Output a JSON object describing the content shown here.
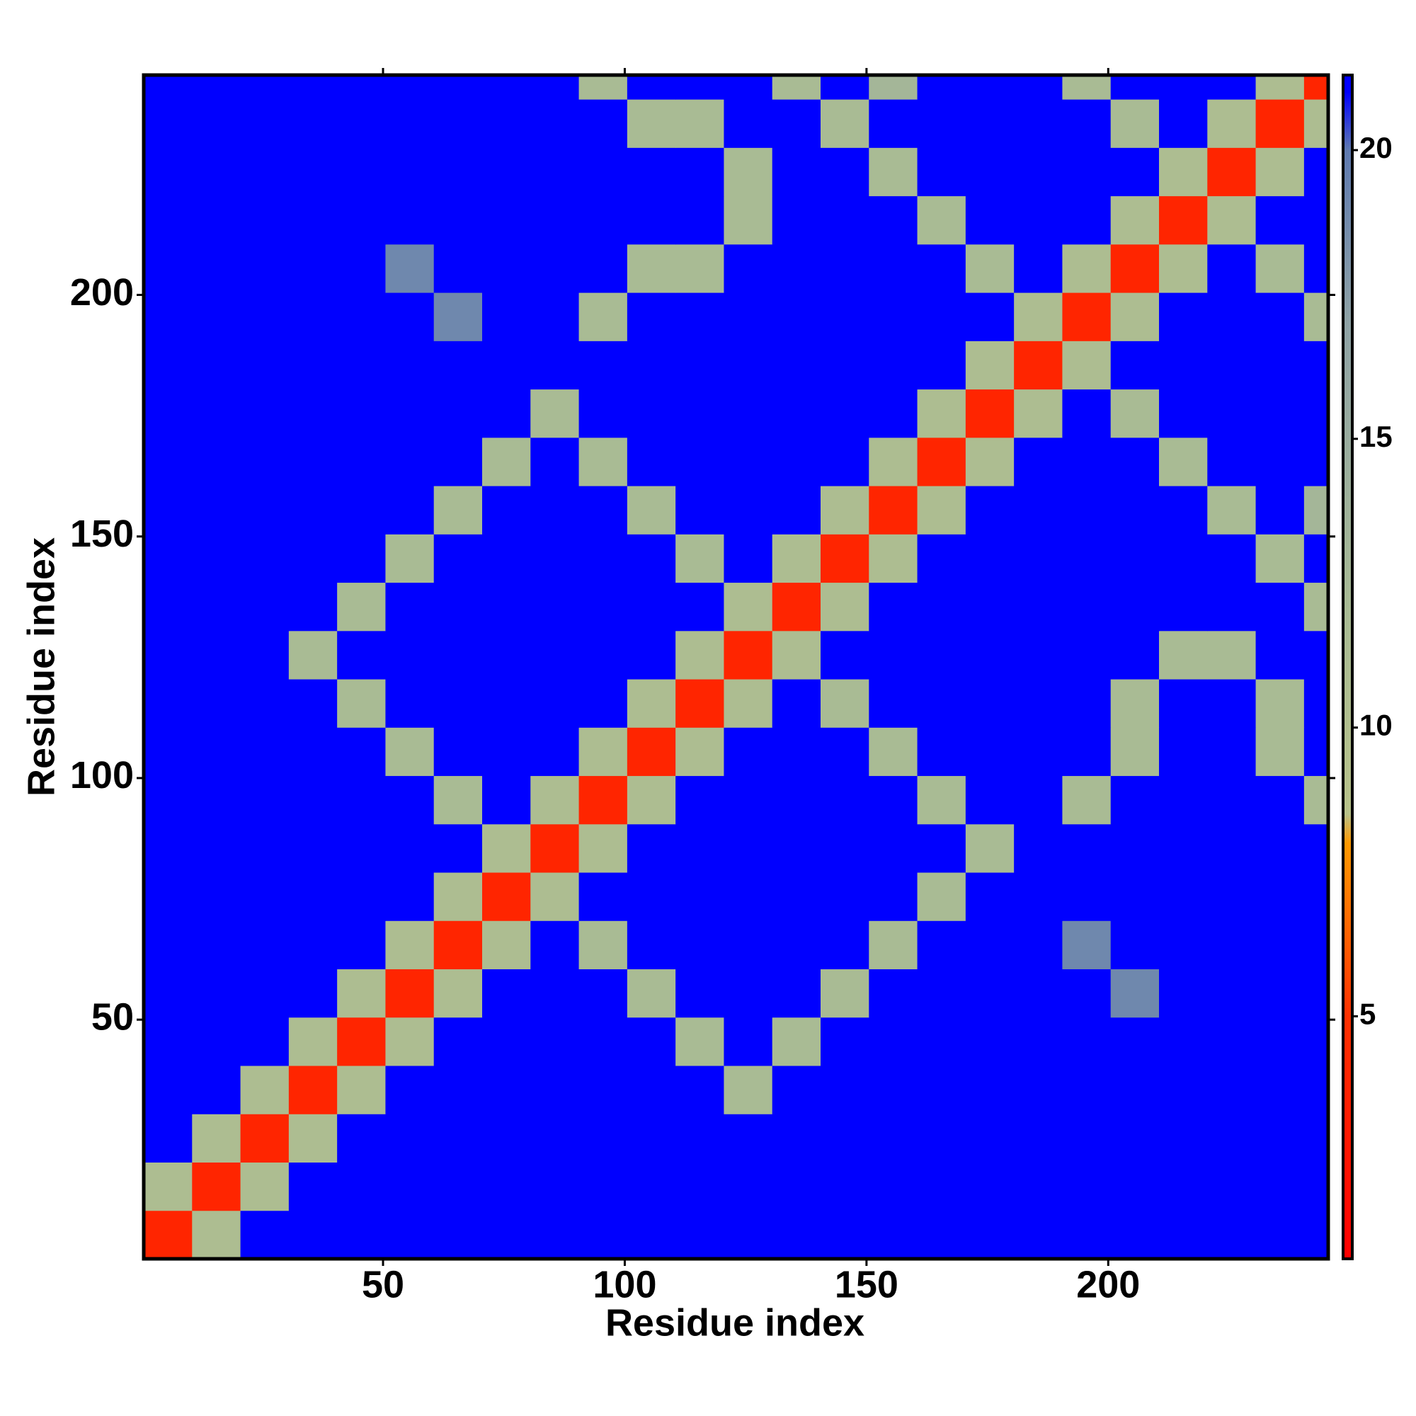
{
  "chart_data": {
    "type": "heatmap",
    "xlabel": "Residue index",
    "ylabel": "Residue index",
    "xlim": [
      0.5,
      245.5
    ],
    "ylim": [
      0.5,
      245.5
    ],
    "xticks": [
      50,
      100,
      150,
      200
    ],
    "yticks": [
      50,
      100,
      150,
      200
    ],
    "xbins": [
      0.5,
      10.5,
      20.5,
      30.5,
      40.5,
      50.5,
      60.5,
      70.5,
      80.5,
      90.5,
      100.5,
      110.5,
      120.5,
      130.5,
      140.5,
      150.5,
      160.5,
      170.5,
      180.5,
      190.5,
      200.5,
      210.5,
      220.5,
      230.5,
      240.5,
      245.5
    ],
    "ybins": [
      0.5,
      10.5,
      20.5,
      30.5,
      40.5,
      50.5,
      60.5,
      70.5,
      80.5,
      90.5,
      100.5,
      110.5,
      120.5,
      130.5,
      140.5,
      150.5,
      160.5,
      170.5,
      180.5,
      190.5,
      200.5,
      210.5,
      220.5,
      230.5,
      240.5,
      245.5
    ],
    "clim": [
      0.8,
      21.3
    ],
    "cticks": [
      5,
      10,
      15,
      20
    ],
    "colorscale": [
      [
        0.8,
        "#ff0000"
      ],
      [
        5,
        "#ff3000"
      ],
      [
        8,
        "#ff9900"
      ],
      [
        8.5,
        "#b8c28a"
      ],
      [
        12,
        "#a9bb94"
      ],
      [
        17,
        "#8fa3a6"
      ],
      [
        20,
        "#5f7ab0"
      ],
      [
        21,
        "#0000ff"
      ]
    ],
    "z": [
      [
        4,
        11,
        21,
        21,
        21,
        21,
        21,
        21,
        21,
        21,
        21,
        21,
        21,
        21,
        21,
        21,
        21,
        21,
        21,
        21,
        21,
        21,
        21,
        21,
        21
      ],
      [
        11,
        4,
        11,
        21,
        21,
        21,
        21,
        21,
        21,
        21,
        21,
        21,
        21,
        21,
        21,
        21,
        21,
        21,
        21,
        21,
        21,
        21,
        21,
        21,
        21
      ],
      [
        21,
        11,
        4,
        11,
        21,
        21,
        21,
        21,
        21,
        21,
        21,
        21,
        21,
        21,
        21,
        21,
        21,
        21,
        21,
        21,
        21,
        21,
        21,
        21,
        21
      ],
      [
        21,
        21,
        11,
        4,
        11,
        21,
        21,
        21,
        21,
        21,
        21,
        21,
        12,
        21,
        21,
        21,
        21,
        21,
        21,
        21,
        21,
        21,
        21,
        21,
        21
      ],
      [
        21,
        21,
        21,
        11,
        4,
        11,
        21,
        21,
        21,
        21,
        21,
        12,
        21,
        12,
        21,
        21,
        21,
        21,
        21,
        21,
        21,
        21,
        21,
        21,
        21
      ],
      [
        21,
        21,
        21,
        21,
        11,
        4,
        11,
        21,
        21,
        21,
        12,
        21,
        21,
        21,
        12,
        21,
        21,
        21,
        21,
        21,
        19,
        21,
        21,
        21,
        21
      ],
      [
        21,
        21,
        21,
        21,
        21,
        11,
        4,
        11,
        21,
        12,
        21,
        21,
        21,
        21,
        21,
        12,
        21,
        21,
        21,
        19,
        21,
        21,
        21,
        21,
        21
      ],
      [
        21,
        21,
        21,
        21,
        21,
        21,
        11,
        4,
        11,
        21,
        21,
        21,
        21,
        21,
        21,
        21,
        12,
        21,
        21,
        21,
        21,
        21,
        21,
        21,
        21
      ],
      [
        21,
        21,
        21,
        21,
        21,
        21,
        21,
        11,
        4,
        11,
        21,
        21,
        21,
        21,
        21,
        21,
        21,
        12,
        21,
        21,
        21,
        21,
        21,
        21,
        21
      ],
      [
        21,
        21,
        21,
        21,
        21,
        21,
        12,
        21,
        11,
        4,
        11,
        21,
        21,
        21,
        21,
        21,
        12,
        21,
        21,
        12,
        21,
        21,
        21,
        21,
        12
      ],
      [
        21,
        21,
        21,
        21,
        21,
        12,
        21,
        21,
        21,
        11,
        4,
        11,
        21,
        21,
        21,
        12,
        21,
        21,
        21,
        21,
        12,
        21,
        21,
        12,
        21
      ],
      [
        21,
        21,
        21,
        21,
        12,
        21,
        21,
        21,
        21,
        21,
        11,
        4,
        11,
        21,
        12,
        21,
        21,
        21,
        21,
        21,
        12,
        21,
        21,
        12,
        21
      ],
      [
        21,
        21,
        21,
        12,
        21,
        21,
        21,
        21,
        21,
        21,
        21,
        11,
        4,
        11,
        21,
        21,
        21,
        21,
        21,
        21,
        21,
        12,
        12,
        21,
        21
      ],
      [
        21,
        21,
        21,
        21,
        12,
        21,
        21,
        21,
        21,
        21,
        21,
        21,
        11,
        4,
        11,
        21,
        21,
        21,
        21,
        21,
        21,
        21,
        21,
        21,
        12
      ],
      [
        21,
        21,
        21,
        21,
        21,
        12,
        21,
        21,
        21,
        21,
        21,
        12,
        21,
        11,
        4,
        11,
        21,
        21,
        21,
        21,
        21,
        21,
        21,
        12,
        21
      ],
      [
        21,
        21,
        21,
        21,
        21,
        21,
        12,
        21,
        21,
        21,
        12,
        21,
        21,
        21,
        11,
        4,
        11,
        21,
        21,
        21,
        21,
        21,
        12,
        21,
        13
      ],
      [
        21,
        21,
        21,
        21,
        21,
        21,
        21,
        12,
        21,
        12,
        21,
        21,
        21,
        21,
        21,
        11,
        4,
        11,
        21,
        21,
        21,
        12,
        21,
        21,
        21
      ],
      [
        21,
        21,
        21,
        21,
        21,
        21,
        21,
        21,
        12,
        21,
        21,
        21,
        21,
        21,
        21,
        21,
        11,
        4,
        11,
        21,
        12,
        21,
        21,
        21,
        21
      ],
      [
        21,
        21,
        21,
        21,
        21,
        21,
        21,
        21,
        21,
        21,
        21,
        21,
        21,
        21,
        21,
        21,
        21,
        11,
        4,
        11,
        21,
        21,
        21,
        21,
        21
      ],
      [
        21,
        21,
        21,
        21,
        21,
        21,
        19,
        21,
        21,
        12,
        21,
        21,
        21,
        21,
        21,
        21,
        21,
        21,
        11,
        4,
        11,
        21,
        21,
        21,
        12
      ],
      [
        21,
        21,
        21,
        21,
        21,
        19,
        21,
        21,
        21,
        21,
        12,
        12,
        21,
        21,
        21,
        21,
        21,
        12,
        21,
        11,
        4,
        11,
        21,
        12,
        21
      ],
      [
        21,
        21,
        21,
        21,
        21,
        21,
        21,
        21,
        21,
        21,
        21,
        21,
        12,
        21,
        21,
        21,
        12,
        21,
        21,
        21,
        11,
        4,
        11,
        21,
        21
      ],
      [
        21,
        21,
        21,
        21,
        21,
        21,
        21,
        21,
        21,
        21,
        21,
        21,
        12,
        21,
        21,
        12,
        21,
        21,
        21,
        21,
        21,
        11,
        4,
        11,
        21
      ],
      [
        21,
        21,
        21,
        21,
        21,
        21,
        21,
        21,
        21,
        21,
        12,
        12,
        21,
        21,
        12,
        21,
        21,
        21,
        21,
        21,
        12,
        21,
        11,
        4,
        11
      ],
      [
        21,
        21,
        21,
        21,
        21,
        21,
        21,
        21,
        21,
        12,
        21,
        21,
        21,
        12,
        21,
        13,
        21,
        21,
        21,
        12,
        21,
        21,
        21,
        11,
        4
      ]
    ]
  }
}
